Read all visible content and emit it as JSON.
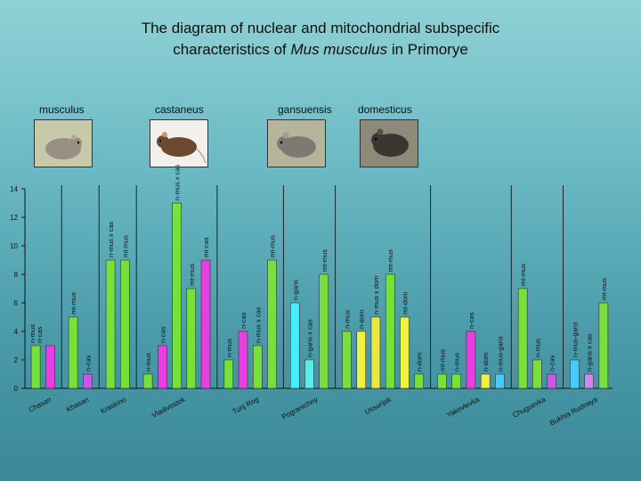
{
  "title": {
    "line1": "The diagram of nuclear and mitochondrial subspecific",
    "line2_pre": "characteristics of ",
    "line2_em": "Mus musculus",
    "line2_post": " in Primorye"
  },
  "subspecies": [
    {
      "label": "musculus",
      "color": "#9a8f85"
    },
    {
      "label": "castaneus",
      "color": "#6b4a30"
    },
    {
      "label": "gansuensis",
      "color": "#7e7a72"
    },
    {
      "label": "domesticus",
      "color": "#3c3631"
    }
  ],
  "chart_data": {
    "type": "bar",
    "title": "",
    "ylim": [
      0,
      14
    ],
    "yticks": [
      0,
      2,
      4,
      6,
      8,
      10,
      12,
      14
    ],
    "groups": [
      {
        "name": "Chasan",
        "bars": [
          {
            "value": 3,
            "color": "#77e03a",
            "label": "n-mus\nn-cas"
          },
          {
            "value": 3,
            "color": "#e840e0",
            "label": ""
          }
        ]
      },
      {
        "name": "Khasan",
        "bars": [
          {
            "value": 5,
            "color": "#77e03a",
            "label": "mt-mus"
          },
          {
            "value": 1,
            "color": "#cc55ee",
            "label": "n-cas"
          }
        ]
      },
      {
        "name": "Kraskino",
        "bars": [
          {
            "value": 9,
            "color": "#77e03a",
            "label": "n-mus x cas"
          },
          {
            "value": 9,
            "color": "#77e03a",
            "label": "mt-mus"
          }
        ]
      },
      {
        "name": "Vladivostok",
        "bars": [
          {
            "value": 1,
            "color": "#77e03a",
            "label": "n-mus"
          },
          {
            "value": 3,
            "color": "#e840e0",
            "label": "n-cas"
          },
          {
            "value": 13,
            "color": "#77e03a",
            "label": "n-mus x cas"
          },
          {
            "value": 7,
            "color": "#77e03a",
            "label": "mt-mus"
          },
          {
            "value": 9,
            "color": "#e840e0",
            "label": "mt-cas"
          }
        ]
      },
      {
        "name": "Turij Rog",
        "bars": [
          {
            "value": 2,
            "color": "#77e03a",
            "label": "n-mus"
          },
          {
            "value": 4,
            "color": "#e840e0",
            "label": "n-cas"
          },
          {
            "value": 3,
            "color": "#77e03a",
            "label": "n-mus x cas"
          },
          {
            "value": 9,
            "color": "#77e03a",
            "label": "mt-mus"
          }
        ]
      },
      {
        "name": "Pogranichny",
        "bars": [
          {
            "value": 6,
            "color": "#40f0ff",
            "label": "n-gans"
          },
          {
            "value": 2,
            "color": "#55eeee",
            "label": "n-gans x cas"
          },
          {
            "value": 8,
            "color": "#77e03a",
            "label": "mt-mus"
          }
        ]
      },
      {
        "name": "Ussurijsk",
        "bars": [
          {
            "value": 4,
            "color": "#77e03a",
            "label": "n-mus"
          },
          {
            "value": 4,
            "color": "#f0f040",
            "label": "n-dom"
          },
          {
            "value": 5,
            "color": "#e8e840",
            "label": "n-mus x dom"
          },
          {
            "value": 8,
            "color": "#77e03a",
            "label": "mt-mus"
          },
          {
            "value": 5,
            "color": "#f0f040",
            "label": "mt-dom"
          },
          {
            "value": 1,
            "color": "#77e03a",
            "label": "n-dom"
          }
        ]
      },
      {
        "name": "Yakovlevka",
        "bars": [
          {
            "value": 1,
            "color": "#77e03a",
            "label": "mt-mus"
          },
          {
            "value": 1,
            "color": "#77e03a",
            "label": "n-mus"
          },
          {
            "value": 4,
            "color": "#e840e0",
            "label": "n-cas"
          },
          {
            "value": 1,
            "color": "#f0f040",
            "label": "n-dom"
          },
          {
            "value": 1,
            "color": "#40ccff",
            "label": "n-mus-gans"
          }
        ]
      },
      {
        "name": "Chuguevka",
        "bars": [
          {
            "value": 7,
            "color": "#77e03a",
            "label": "mt-mus"
          },
          {
            "value": 2,
            "color": "#77e03a",
            "label": "n-mus"
          },
          {
            "value": 1,
            "color": "#cc55ee",
            "label": "n-cas"
          }
        ]
      },
      {
        "name": "Bukhta Rudnaya",
        "bars": [
          {
            "value": 2,
            "color": "#40ccff",
            "label": "n-mus-gans"
          },
          {
            "value": 1,
            "color": "#cc88ee",
            "label": "n-gans x cas"
          },
          {
            "value": 6,
            "color": "#77e03a",
            "label": "mt-mus"
          }
        ]
      }
    ]
  }
}
